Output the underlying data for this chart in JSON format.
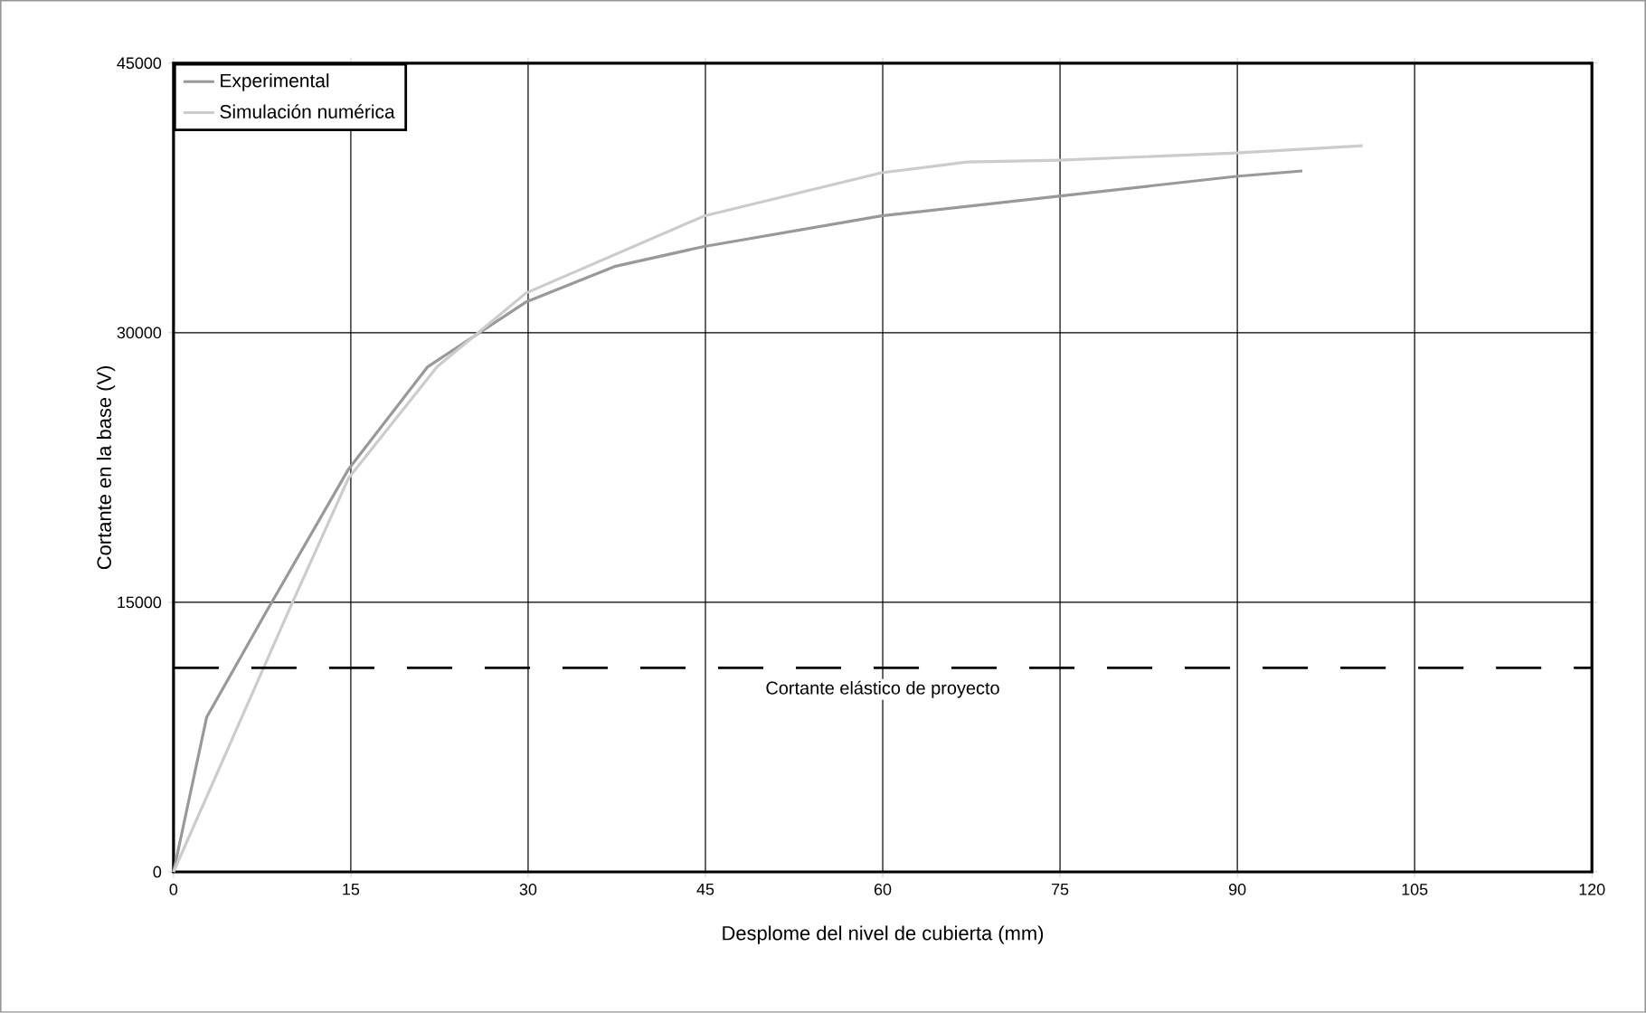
{
  "chart_data": {
    "type": "line",
    "xlabel": "Desplome del nivel de cubierta (mm)",
    "ylabel": "Cortante en la base (V)",
    "xlim": [
      0,
      120
    ],
    "xticks": [
      0,
      15,
      30,
      45,
      60,
      75,
      90,
      105,
      120
    ],
    "ylim": [
      0,
      45000
    ],
    "yticks": [
      0,
      15000,
      30000,
      45000
    ],
    "grid": true,
    "legend": "top left",
    "line_style": "solid",
    "marker": "none",
    "series": [
      {
        "name": "Experimental",
        "color": "#999999",
        "x": [
          0,
          2.8,
          7.7,
          14.8,
          21.5,
          29.8,
          37.4,
          44.9,
          59.9,
          74.9,
          89.9,
          95.5
        ],
        "values": [
          0,
          8600,
          14300,
          22400,
          28100,
          31700,
          33700,
          34800,
          36500,
          37600,
          38700,
          39000
        ]
      },
      {
        "name": "Simulación numérica",
        "color": "#cccccc",
        "x": [
          0,
          10,
          14.8,
          22.3,
          29.8,
          44.9,
          59.9,
          67.1,
          74.9,
          89.9,
          100.6
        ],
        "values": [
          0,
          14900,
          21900,
          28100,
          32200,
          36500,
          38900,
          39500,
          39600,
          40000,
          40400
        ]
      }
    ],
    "ref_lines": [
      {
        "axis": "y",
        "value": 11350,
        "label": "Cortante elástico de proyecto",
        "color": "#000000",
        "line_style": "dashed"
      }
    ]
  }
}
